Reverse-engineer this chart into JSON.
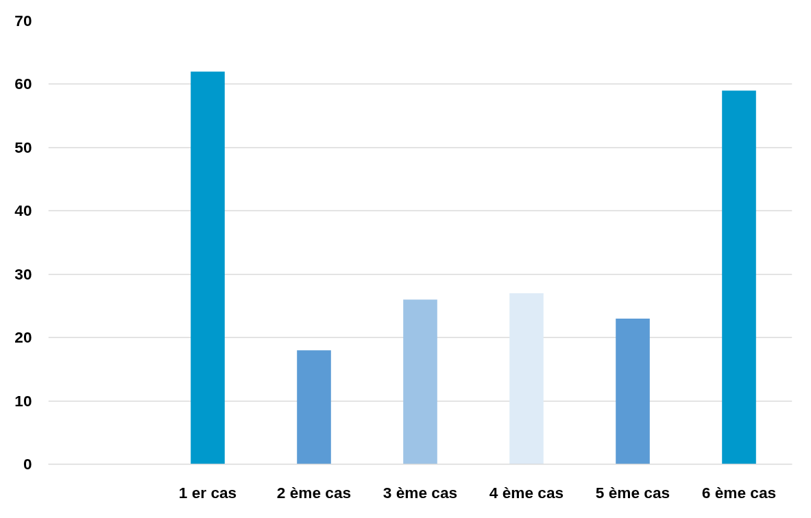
{
  "chart_data": {
    "type": "bar",
    "categories": [
      null,
      "1 er cas",
      "2 ème cas",
      "3 ème cas",
      "4 ème cas",
      "5 ème cas",
      "6 ème cas"
    ],
    "values": [
      null,
      62,
      18,
      26,
      27,
      23,
      59
    ],
    "colors": [
      "#0099cc",
      "#0099cc",
      "#5b9bd5",
      "#9dc3e6",
      "#deebf7",
      "#5b9bd5",
      "#0099cc"
    ],
    "ylim": [
      0,
      70
    ],
    "yticks": [
      0,
      10,
      20,
      30,
      40,
      50,
      60,
      70
    ],
    "grid": "y"
  }
}
